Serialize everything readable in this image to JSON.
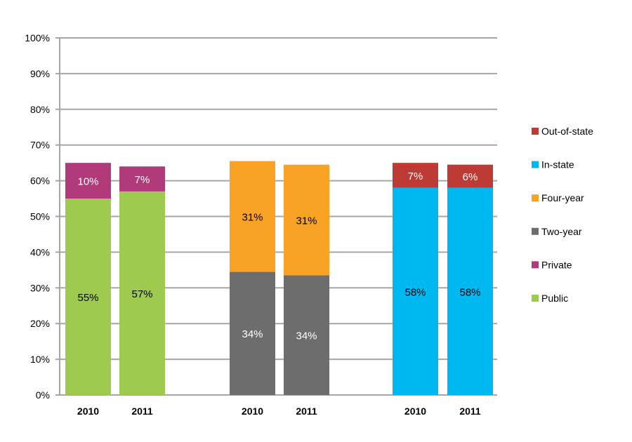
{
  "chart_data": {
    "type": "bar",
    "stacked": true,
    "ylim": [
      0,
      100
    ],
    "yticks": [
      "0%",
      "10%",
      "20%",
      "30%",
      "40%",
      "50%",
      "60%",
      "70%",
      "80%",
      "90%",
      "100%"
    ],
    "grid": true,
    "legend_placement": "right",
    "groups": [
      {
        "categories": [
          "2010",
          "2011"
        ],
        "series": [
          {
            "name": "Public",
            "color": "#9ecb4f",
            "label_color": "#000000",
            "values": [
              55,
              57
            ],
            "labels": [
              "55%",
              "57%"
            ]
          },
          {
            "name": "Private",
            "color": "#b03a7a",
            "label_color": "#ffffff",
            "values": [
              10,
              7
            ],
            "labels": [
              "10%",
              "7%"
            ]
          }
        ]
      },
      {
        "categories": [
          "2010",
          "2011"
        ],
        "series": [
          {
            "name": "Two-year",
            "color": "#6d6d6d",
            "label_color": "#ffffff",
            "values": [
              34.5,
              33.5
            ],
            "labels": [
              "34%",
              "34%"
            ]
          },
          {
            "name": "Four-year",
            "color": "#f9a326",
            "label_color": "#000000",
            "values": [
              31,
              31
            ],
            "labels": [
              "31%",
              "31%"
            ]
          }
        ]
      },
      {
        "categories": [
          "2010",
          "2011"
        ],
        "series": [
          {
            "name": "In-state",
            "color": "#00b8f0",
            "label_color": "#000000",
            "values": [
              58,
              58
            ],
            "labels": [
              "58%",
              "58%"
            ]
          },
          {
            "name": "Out-of-state",
            "color": "#be3a34",
            "label_color": "#ffffff",
            "values": [
              7,
              6.5
            ],
            "labels": [
              "7%",
              "6%"
            ]
          }
        ]
      }
    ],
    "legend": [
      {
        "name": "Out-of-state",
        "color": "#be3a34"
      },
      {
        "name": "In-state",
        "color": "#00b8f0"
      },
      {
        "name": "Four-year",
        "color": "#f9a326"
      },
      {
        "name": "Two-year",
        "color": "#6d6d6d"
      },
      {
        "name": "Private",
        "color": "#b03a7a"
      },
      {
        "name": "Public",
        "color": "#9ecb4f"
      }
    ]
  }
}
